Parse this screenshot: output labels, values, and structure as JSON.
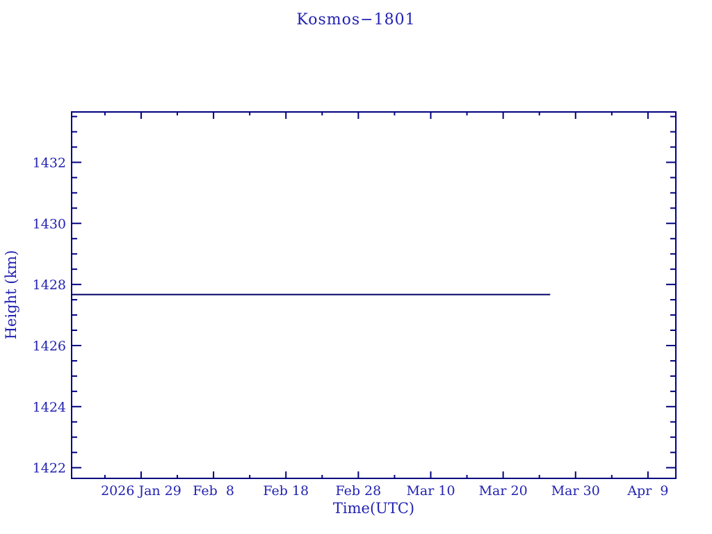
{
  "chart_data": {
    "type": "line",
    "title": "Kosmos−1801",
    "xlabel": "Time(UTC)",
    "ylabel": "Height (km)",
    "x_axis": {
      "unit": "day-of-year 2026",
      "range": [
        19.4,
        102.85
      ],
      "major_ticks": [
        {
          "value": 29,
          "label": "2026 Jan 29"
        },
        {
          "value": 39,
          "label": "Feb  8"
        },
        {
          "value": 49,
          "label": "Feb 18"
        },
        {
          "value": 59,
          "label": "Feb 28"
        },
        {
          "value": 69,
          "label": "Mar 10"
        },
        {
          "value": 79,
          "label": "Mar 20"
        },
        {
          "value": 89,
          "label": "Mar 30"
        },
        {
          "value": 99,
          "label": "Apr  9"
        }
      ],
      "minor_ticks": [
        24,
        34,
        44,
        54,
        64,
        74,
        84,
        94
      ]
    },
    "y_axis": {
      "unit": "km",
      "range": [
        1421.65,
        1433.65
      ],
      "major_ticks": [
        {
          "value": 1422,
          "label": "1422"
        },
        {
          "value": 1424,
          "label": "1424"
        },
        {
          "value": 1426,
          "label": "1426"
        },
        {
          "value": 1428,
          "label": "1428"
        },
        {
          "value": 1430,
          "label": "1430"
        },
        {
          "value": 1432,
          "label": "1432"
        }
      ],
      "minor_ticks": [
        1422.5,
        1423,
        1423.5,
        1424.5,
        1425,
        1425.5,
        1426.5,
        1427,
        1427.5,
        1428.5,
        1429,
        1429.5,
        1430.5,
        1431,
        1431.5,
        1432.5,
        1433,
        1433.5
      ]
    },
    "series": [
      {
        "name": "height",
        "points": [
          [
            19.4,
            1427.67
          ],
          [
            85.5,
            1427.67
          ]
        ]
      }
    ],
    "grid": false,
    "legend": false,
    "colors": {
      "axis": "#000080",
      "text": "#2222b2",
      "line": "#000066",
      "background": "#ffffff"
    }
  }
}
